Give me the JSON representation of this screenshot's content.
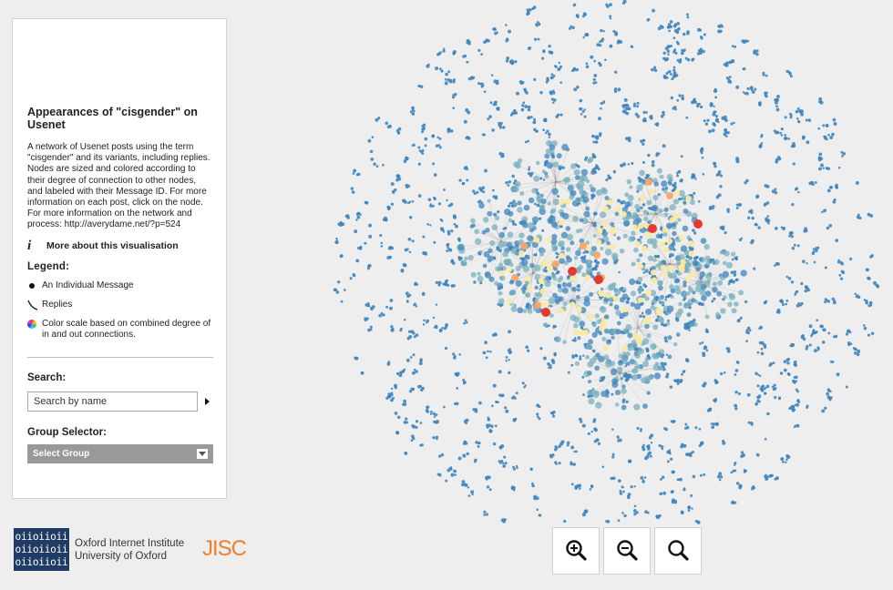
{
  "panel": {
    "title": "Appearances of \"cisgender\" on Usenet",
    "description": "A network of Usenet posts using the term \"cisgender\" and its variants, including replies. Nodes are sized and colored according to their degree of connection to other nodes, and labeled with their Message ID. For more information on each post, click on the node. For more information on the network and process: http://averydame.net/?p=524",
    "more_info_label": "More about this visualisation",
    "legend_title": "Legend:",
    "legend": [
      {
        "icon": "black-dot-icon",
        "label": "An Individual Message"
      },
      {
        "icon": "curve-line-icon",
        "label": "Replies"
      },
      {
        "icon": "color-wheel-icon",
        "label": "Color scale based on combined degree of in and out connections."
      }
    ],
    "search_title": "Search:",
    "search_placeholder": "Search by name",
    "group_title": "Group Selector:",
    "group_value": "Select Group"
  },
  "footer": {
    "oii_logo_lines": [
      "oiioiioii",
      "oiioiioii",
      "oiioiioii"
    ],
    "oii_name": "Oxford Internet Institute",
    "oii_university": "University of Oxford",
    "jisc": "JISC"
  },
  "zoom": {
    "buttons": [
      {
        "name": "zoom-in-button",
        "icon": "zoom-in-icon"
      },
      {
        "name": "zoom-out-button",
        "icon": "zoom-out-icon"
      },
      {
        "name": "zoom-reset-button",
        "icon": "magnifier-icon"
      }
    ]
  },
  "colors": {
    "node_blue": "#3f85bd",
    "node_teal": "#7ab0bd",
    "node_cream": "#fbe9a0",
    "node_orange": "#f6a46b",
    "node_red": "#e53a2b",
    "edge": "#666666"
  }
}
